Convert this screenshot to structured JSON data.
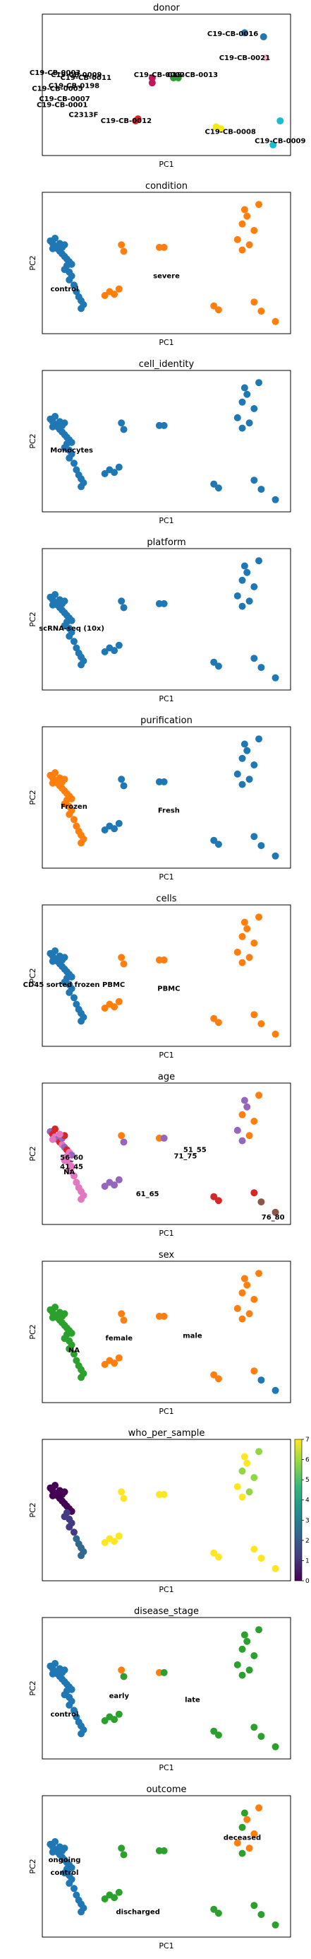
{
  "chart_data": [
    {
      "type": "scatter",
      "title": "donor",
      "xlabel": "PC1",
      "ylabel": "",
      "grid": false,
      "labels": [
        {
          "text": "C19-CB-0016",
          "x": 0.78,
          "y": 0.91
        },
        {
          "text": "C19-CB-0021",
          "x": 0.83,
          "y": 0.67
        },
        {
          "text": "C19-CB-0009",
          "x": 0.12,
          "y": 0.5
        },
        {
          "text": "C19-CB-0011",
          "x": 0.16,
          "y": 0.47
        },
        {
          "text": "C19-CB-0198",
          "x": 0.11,
          "y": 0.39
        },
        {
          "text": "C19-CB-0002",
          "x": 0.47,
          "y": 0.5
        },
        {
          "text": "C19-CB-0013",
          "x": 0.61,
          "y": 0.5
        },
        {
          "text": "C19-CB-0012",
          "x": 0.33,
          "y": 0.04
        },
        {
          "text": "C19-CB-0008",
          "x": 0.77,
          "y": -0.07
        },
        {
          "text": "C19-CB-0009",
          "x": 0.98,
          "y": -0.16
        },
        {
          "text": "C19-CB-0003",
          "x": 0.03,
          "y": 0.52
        },
        {
          "text": "C19-CB-0005",
          "x": 0.04,
          "y": 0.36
        },
        {
          "text": "C19-CB-0007",
          "x": 0.07,
          "y": 0.26
        },
        {
          "text": "C19-CB-0001",
          "x": 0.06,
          "y": 0.2
        },
        {
          "text": "C2313F",
          "x": 0.15,
          "y": 0.1
        }
      ],
      "points": [
        {
          "x": 0.83,
          "y": 0.92,
          "group": "C19-CB-0016"
        },
        {
          "x": 0.91,
          "y": 0.88,
          "group": "C19-CB-0016"
        },
        {
          "x": 0.92,
          "y": 0.67,
          "group": "C19-CB-0021"
        },
        {
          "x": 0.44,
          "y": 0.47,
          "group": "C19-CB-0002"
        },
        {
          "x": 0.44,
          "y": 0.42,
          "group": "C19-CB-0002"
        },
        {
          "x": 0.53,
          "y": 0.47,
          "group": "C19-CB-0013"
        },
        {
          "x": 0.55,
          "y": 0.47,
          "group": "C19-CB-0013"
        },
        {
          "x": 0.37,
          "y": 0.04,
          "group": "C19-CB-0012"
        },
        {
          "x": 0.38,
          "y": 0.06,
          "group": "C19-CB-0012"
        },
        {
          "x": 0.71,
          "y": -0.02,
          "group": "C19-CB-0008"
        },
        {
          "x": 0.73,
          "y": -0.04,
          "group": "C19-CB-0008"
        },
        {
          "x": 0.98,
          "y": 0.04,
          "group": "C19-CB-0009"
        },
        {
          "x": 0.95,
          "y": -0.2,
          "group": "C19-CB-0009"
        }
      ]
    },
    {
      "type": "scatter",
      "title": "condition",
      "xlabel": "PC1",
      "ylabel": "PC2",
      "grid": false,
      "labels": [
        {
          "text": "control",
          "x": 0.07,
          "y": 0.3
        },
        {
          "text": "severe",
          "x": 0.5,
          "y": 0.4
        }
      ]
    },
    {
      "type": "scatter",
      "title": "cell_identity",
      "xlabel": "PC1",
      "ylabel": "PC2",
      "grid": false,
      "labels": [
        {
          "text": "Monocytes",
          "x": 0.1,
          "y": 0.43
        }
      ]
    },
    {
      "type": "scatter",
      "title": "platform",
      "xlabel": "PC1",
      "ylabel": "PC2",
      "grid": false,
      "labels": [
        {
          "text": "scRNA-seq (10x)",
          "x": 0.1,
          "y": 0.43
        }
      ]
    },
    {
      "type": "scatter",
      "title": "purification",
      "xlabel": "PC1",
      "ylabel": "PC2",
      "grid": false,
      "labels": [
        {
          "text": "Frozen",
          "x": 0.11,
          "y": 0.43
        },
        {
          "text": "Fresh",
          "x": 0.51,
          "y": 0.4
        }
      ]
    },
    {
      "type": "scatter",
      "title": "cells",
      "xlabel": "PC1",
      "ylabel": "PC2",
      "grid": false,
      "labels": [
        {
          "text": "CD45 sorted frozen PBMC",
          "x": 0.11,
          "y": 0.43
        },
        {
          "text": "PBMC",
          "x": 0.51,
          "y": 0.4
        }
      ]
    },
    {
      "type": "scatter",
      "title": "age",
      "xlabel": "PC1",
      "ylabel": "PC2",
      "grid": false,
      "labels": [
        {
          "text": "51_55",
          "x": 0.62,
          "y": 0.53
        },
        {
          "text": "56_60",
          "x": 0.1,
          "y": 0.47
        },
        {
          "text": "71_75",
          "x": 0.58,
          "y": 0.48
        },
        {
          "text": "41_45",
          "x": 0.1,
          "y": 0.4
        },
        {
          "text": "NA",
          "x": 0.09,
          "y": 0.36
        },
        {
          "text": "61_65",
          "x": 0.42,
          "y": 0.19
        },
        {
          "text": "76_80",
          "x": 0.95,
          "y": 0.01
        }
      ]
    },
    {
      "type": "scatter",
      "title": "sex",
      "xlabel": "PC1",
      "ylabel": "PC2",
      "grid": false,
      "labels": [
        {
          "text": "female",
          "x": 0.3,
          "y": 0.45
        },
        {
          "text": "male",
          "x": 0.61,
          "y": 0.47
        },
        {
          "text": "NA",
          "x": 0.11,
          "y": 0.36
        }
      ]
    },
    {
      "type": "scatter",
      "title": "who_per_sample",
      "xlabel": "PC1",
      "ylabel": "PC2",
      "grid": false,
      "colorbar": {
        "min": 0,
        "max": 7,
        "ticks": [
          "0",
          "1",
          "2",
          "3",
          "4",
          "5",
          "6",
          "7"
        ],
        "colors": [
          "#440154",
          "#443a83",
          "#31688e",
          "#21918c",
          "#35b779",
          "#90d743",
          "#fde725"
        ]
      }
    },
    {
      "type": "scatter",
      "title": "disease_stage",
      "xlabel": "PC1",
      "ylabel": "PC2",
      "grid": false,
      "labels": [
        {
          "text": "early",
          "x": 0.3,
          "y": 0.44
        },
        {
          "text": "late",
          "x": 0.61,
          "y": 0.41
        },
        {
          "text": "control",
          "x": 0.07,
          "y": 0.3
        }
      ]
    },
    {
      "type": "scatter",
      "title": "outcome",
      "xlabel": "PC1",
      "ylabel": "PC2",
      "grid": false,
      "labels": [
        {
          "text": "deceased",
          "x": 0.82,
          "y": 0.72
        },
        {
          "text": "ongoing",
          "x": 0.07,
          "y": 0.55
        },
        {
          "text": "control",
          "x": 0.07,
          "y": 0.45
        },
        {
          "text": "discharged",
          "x": 0.38,
          "y": 0.15
        }
      ]
    }
  ],
  "colors": {
    "blue": "#1f77b4",
    "orange": "#ff7f0e",
    "green": "#2ca02c",
    "red": "#d62728",
    "purple": "#9467bd",
    "brown": "#8c564b",
    "pink": "#e377c2",
    "cyan": "#17becf",
    "yellow": "#f5e90d",
    "lightpink": "#f7b6d2",
    "crimson": "#c2185b"
  }
}
